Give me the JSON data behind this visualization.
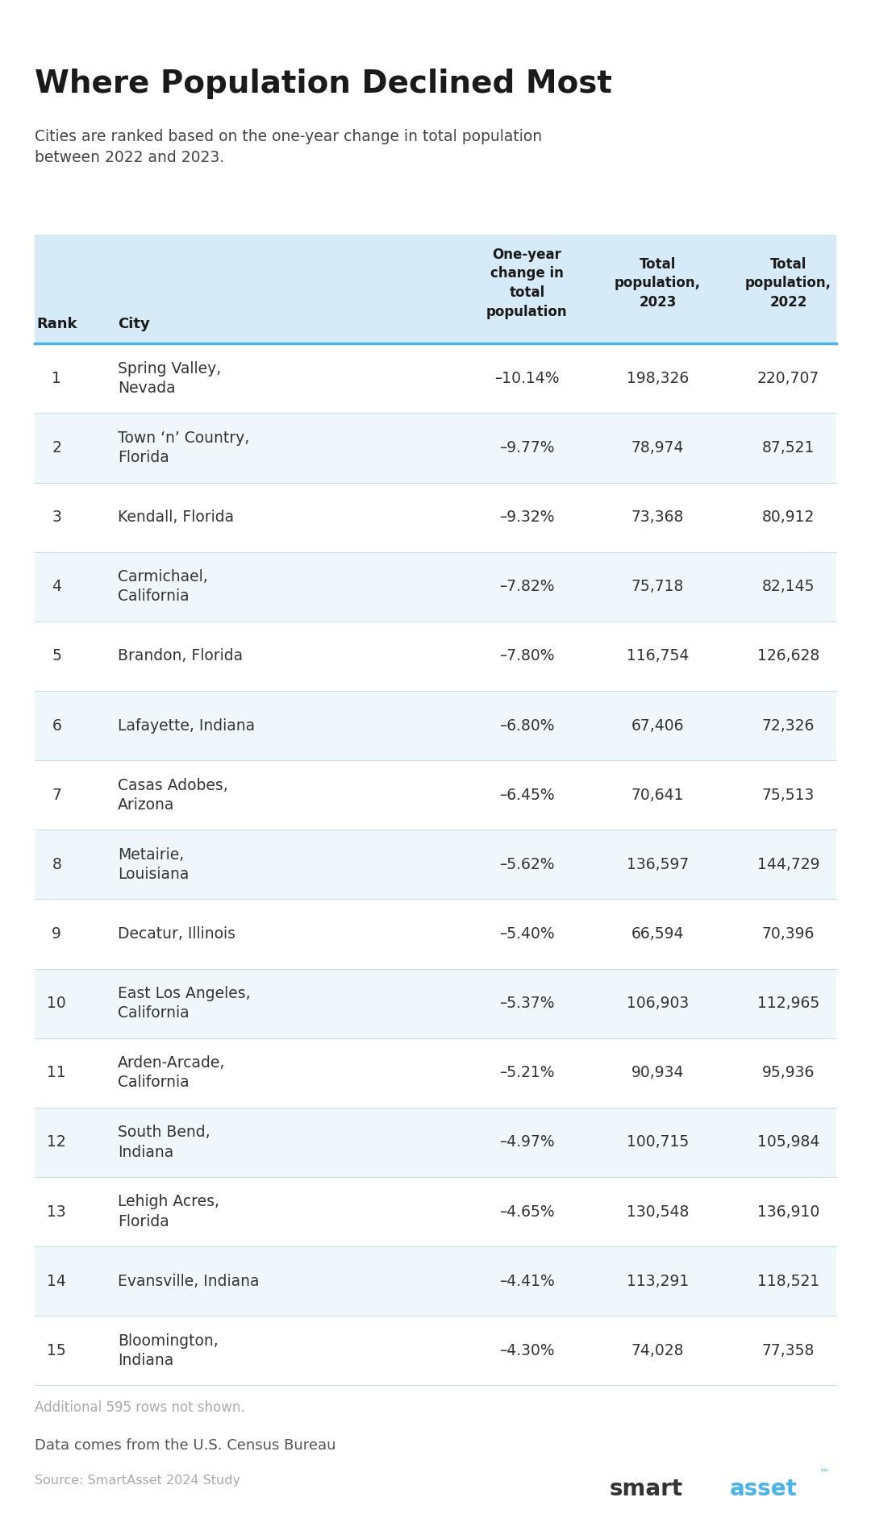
{
  "title": "Where Population Declined Most",
  "subtitle": "Cities are ranked based on the one-year change in total population\nbetween 2022 and 2023.",
  "rows": [
    [
      1,
      "Spring Valley,\nNevada",
      "–10.14%",
      "198,326",
      "220,707"
    ],
    [
      2,
      "Town ‘n’ Country,\nFlorida",
      "–9.77%",
      "78,974",
      "87,521"
    ],
    [
      3,
      "Kendall, Florida",
      "–9.32%",
      "73,368",
      "80,912"
    ],
    [
      4,
      "Carmichael,\nCalifornia",
      "–7.82%",
      "75,718",
      "82,145"
    ],
    [
      5,
      "Brandon, Florida",
      "–7.80%",
      "116,754",
      "126,628"
    ],
    [
      6,
      "Lafayette, Indiana",
      "–6.80%",
      "67,406",
      "72,326"
    ],
    [
      7,
      "Casas Adobes,\nArizona",
      "–6.45%",
      "70,641",
      "75,513"
    ],
    [
      8,
      "Metairie,\nLouisiana",
      "–5.62%",
      "136,597",
      "144,729"
    ],
    [
      9,
      "Decatur, Illinois",
      "–5.40%",
      "66,594",
      "70,396"
    ],
    [
      10,
      "East Los Angeles,\nCalifornia",
      "–5.37%",
      "106,903",
      "112,965"
    ],
    [
      11,
      "Arden-Arcade,\nCalifornia",
      "–5.21%",
      "90,934",
      "95,936"
    ],
    [
      12,
      "South Bend,\nIndiana",
      "–4.97%",
      "100,715",
      "105,984"
    ],
    [
      13,
      "Lehigh Acres,\nFlorida",
      "–4.65%",
      "130,548",
      "136,910"
    ],
    [
      14,
      "Evansville, Indiana",
      "–4.41%",
      "113,291",
      "118,521"
    ],
    [
      15,
      "Bloomington,\nIndiana",
      "–4.30%",
      "74,028",
      "77,358"
    ]
  ],
  "footer_note": "Additional 595 rows not shown.",
  "data_source": "Data comes from the U.S. Census Bureau",
  "source_line": "Source: SmartAsset 2024 Study",
  "header_bg": "#d6eaf8",
  "row_bg_odd": "#ffffff",
  "row_bg_even": "#f0f7fb",
  "header_sep_color": "#4ab3e8",
  "divider_color": "#c8dde8",
  "title_color": "#1a1a1a",
  "subtitle_color": "#444444",
  "header_text_color": "#1a1a1a",
  "cell_text_color": "#333333",
  "footer_note_color": "#aaaaaa",
  "source_color": "#555555",
  "smart_color": "#333333",
  "asset_color": "#4ab3e8",
  "background_color": "#ffffff"
}
